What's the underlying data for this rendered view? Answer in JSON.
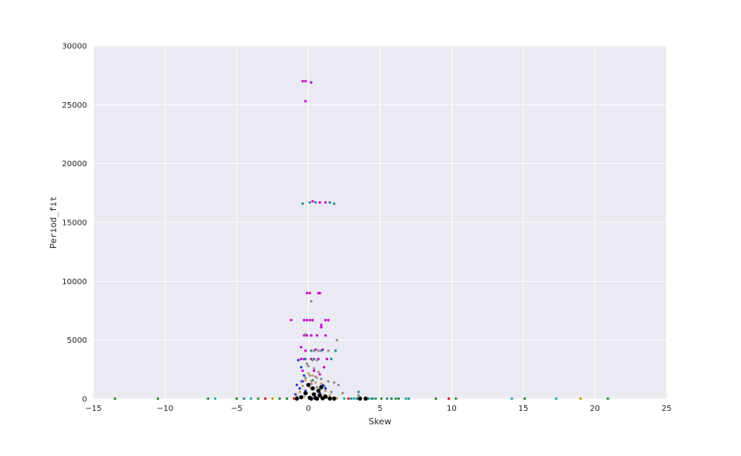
{
  "chart_data": {
    "type": "scatter",
    "title": "",
    "xlabel": "Skew",
    "ylabel": "Period_fit",
    "xlim": [
      -15,
      25
    ],
    "ylim": [
      0,
      30000
    ],
    "xticks": [
      -15,
      -10,
      -5,
      0,
      5,
      10,
      15,
      20,
      25
    ],
    "yticks": [
      0,
      5000,
      10000,
      15000,
      20000,
      25000,
      30000
    ],
    "grid": true,
    "legend": "none",
    "colors": {
      "background": "#EAEAF2",
      "grid": "#FFFFFF",
      "magenta": "#CC00CC",
      "teal": "#2E8B8B",
      "gray": "#8C8C8C",
      "blue": "#3333CC",
      "tan": "#C8A070",
      "black": "#000000",
      "green": "#2E8B2E",
      "cyan": "#20B2AA",
      "red": "#CC2222",
      "olive": "#B8A000"
    },
    "series": [
      {
        "color": "magenta",
        "points": [
          [
            -0.4,
            27000
          ],
          [
            -0.2,
            27000
          ],
          [
            0.2,
            26900
          ],
          [
            -0.2,
            25300
          ],
          [
            0.3,
            16800
          ],
          [
            0.8,
            16700
          ],
          [
            1.2,
            16700
          ],
          [
            -0.1,
            9000
          ],
          [
            0.1,
            9000
          ],
          [
            0.7,
            9000
          ],
          [
            0.8,
            9000
          ],
          [
            -0.3,
            6700
          ],
          [
            -0.1,
            6700
          ],
          [
            0.1,
            6700
          ],
          [
            0.3,
            6700
          ],
          [
            1.2,
            6700
          ],
          [
            1.4,
            6700
          ],
          [
            -1.2,
            6700
          ],
          [
            0.9,
            6300
          ],
          [
            0.9,
            6100
          ],
          [
            -0.3,
            5400
          ],
          [
            -0.1,
            5400
          ],
          [
            0.2,
            5400
          ],
          [
            0.6,
            5400
          ],
          [
            1.2,
            5400
          ],
          [
            -0.5,
            4400
          ],
          [
            -0.2,
            4100
          ],
          [
            0.5,
            4200
          ],
          [
            1.0,
            4200
          ],
          [
            -0.5,
            3400
          ],
          [
            -0.3,
            3400
          ],
          [
            0.2,
            3400
          ],
          [
            0.7,
            3400
          ],
          [
            1.3,
            3400
          ],
          [
            -0.4,
            2400
          ],
          [
            0.4,
            2400
          ],
          [
            1.1,
            2700
          ],
          [
            0.8,
            2100
          ],
          [
            9.8,
            0
          ]
        ]
      },
      {
        "color": "teal",
        "points": [
          [
            -0.4,
            16600
          ],
          [
            0.1,
            16700
          ],
          [
            0.5,
            16700
          ],
          [
            1.5,
            16700
          ],
          [
            1.8,
            16600
          ],
          [
            -0.2,
            3400
          ],
          [
            0.4,
            3400
          ],
          [
            1.6,
            3400
          ],
          [
            0.2,
            4100
          ],
          [
            0.9,
            4100
          ],
          [
            1.9,
            4100
          ],
          [
            0.3,
            1600
          ],
          [
            1.1,
            1100
          ],
          [
            3.5,
            600
          ],
          [
            3.0,
            0
          ],
          [
            3.4,
            0
          ],
          [
            4.2,
            0
          ],
          [
            4.7,
            0
          ],
          [
            5.5,
            0
          ],
          [
            6.1,
            0
          ],
          [
            7.0,
            0
          ],
          [
            -4.5,
            0
          ]
        ]
      },
      {
        "color": "gray",
        "points": [
          [
            0.2,
            8300
          ],
          [
            -0.2,
            5500
          ],
          [
            0.4,
            4100
          ],
          [
            0.7,
            4100
          ],
          [
            1.4,
            4100
          ],
          [
            2.0,
            5000
          ],
          [
            -0.1,
            3000
          ],
          [
            0.3,
            3300
          ],
          [
            0.6,
            3300
          ],
          [
            0.0,
            2800
          ],
          [
            0.4,
            2600
          ],
          [
            0.7,
            2300
          ],
          [
            0.1,
            2000
          ],
          [
            0.5,
            1900
          ],
          [
            0.9,
            1700
          ],
          [
            1.4,
            1500
          ],
          [
            1.8,
            1400
          ],
          [
            2.1,
            1200
          ],
          [
            -0.2,
            1800
          ],
          [
            -0.5,
            1500
          ],
          [
            0.2,
            1300
          ],
          [
            0.6,
            1000
          ],
          [
            1.2,
            800
          ],
          [
            1.6,
            600
          ],
          [
            2.4,
            500
          ],
          [
            3.5,
            300
          ]
        ]
      },
      {
        "color": "blue",
        "points": [
          [
            -0.7,
            3300
          ],
          [
            -0.5,
            2700
          ],
          [
            -0.3,
            2000
          ],
          [
            -0.4,
            1500
          ],
          [
            -0.8,
            1200
          ],
          [
            -0.6,
            900
          ],
          [
            -0.2,
            700
          ],
          [
            1.0,
            1200
          ],
          [
            1.2,
            900
          ],
          [
            0.8,
            500
          ],
          [
            -0.9,
            400
          ]
        ]
      },
      {
        "color": "tan",
        "points": [
          [
            0.0,
            2200
          ],
          [
            0.3,
            2000
          ],
          [
            0.6,
            1800
          ],
          [
            -0.2,
            1600
          ],
          [
            0.2,
            1500
          ],
          [
            0.5,
            1400
          ],
          [
            0.9,
            1300
          ],
          [
            -0.4,
            1100
          ],
          [
            0.1,
            1000
          ],
          [
            0.4,
            900
          ],
          [
            0.8,
            800
          ],
          [
            1.2,
            700
          ],
          [
            -0.6,
            600
          ],
          [
            -0.1,
            500
          ],
          [
            0.3,
            450
          ],
          [
            0.7,
            400
          ],
          [
            1.1,
            350
          ],
          [
            1.5,
            300
          ],
          [
            -0.8,
            250
          ],
          [
            -0.3,
            200
          ],
          [
            0.1,
            180
          ],
          [
            0.5,
            150
          ],
          [
            0.9,
            120
          ],
          [
            1.3,
            100
          ],
          [
            1.7,
            80
          ],
          [
            2.0,
            60
          ],
          [
            -1.0,
            60
          ],
          [
            0.2,
            40
          ],
          [
            0.6,
            30
          ]
        ]
      },
      {
        "color": "black",
        "points": [
          [
            0.0,
            1200
          ],
          [
            0.3,
            900
          ],
          [
            0.7,
            700
          ],
          [
            0.9,
            1000
          ],
          [
            -0.2,
            500
          ],
          [
            0.4,
            400
          ],
          [
            0.8,
            300
          ],
          [
            1.2,
            200
          ],
          [
            -0.5,
            150
          ],
          [
            0.1,
            100
          ],
          [
            0.5,
            80
          ],
          [
            1.0,
            60
          ],
          [
            1.5,
            40
          ],
          [
            -0.8,
            30
          ],
          [
            0.2,
            20
          ],
          [
            0.6,
            10
          ],
          [
            1.8,
            10
          ],
          [
            3.6,
            20
          ],
          [
            4.0,
            10
          ]
        ]
      },
      {
        "color": "green",
        "points": [
          [
            -13.5,
            0
          ],
          [
            -10.5,
            0
          ],
          [
            -7.0,
            0
          ],
          [
            -5.0,
            0
          ],
          [
            -3.5,
            0
          ],
          [
            -2.0,
            0
          ],
          [
            -1.5,
            0
          ],
          [
            4.5,
            0
          ],
          [
            5.1,
            0
          ],
          [
            5.8,
            0
          ],
          [
            6.3,
            0
          ],
          [
            8.9,
            0
          ],
          [
            10.3,
            0
          ],
          [
            15.1,
            0
          ],
          [
            20.9,
            0
          ]
        ]
      },
      {
        "color": "cyan",
        "points": [
          [
            -6.5,
            0
          ],
          [
            -4.0,
            0
          ],
          [
            2.5,
            0
          ],
          [
            3.2,
            0
          ],
          [
            4.4,
            0
          ],
          [
            6.8,
            0
          ],
          [
            14.2,
            0
          ],
          [
            17.3,
            0
          ]
        ]
      },
      {
        "color": "red",
        "points": [
          [
            -3.0,
            0
          ],
          [
            -1.0,
            0
          ],
          [
            2.8,
            0
          ],
          [
            9.8,
            0
          ]
        ]
      },
      {
        "color": "olive",
        "points": [
          [
            -2.5,
            0
          ],
          [
            19.0,
            0
          ]
        ]
      }
    ]
  }
}
